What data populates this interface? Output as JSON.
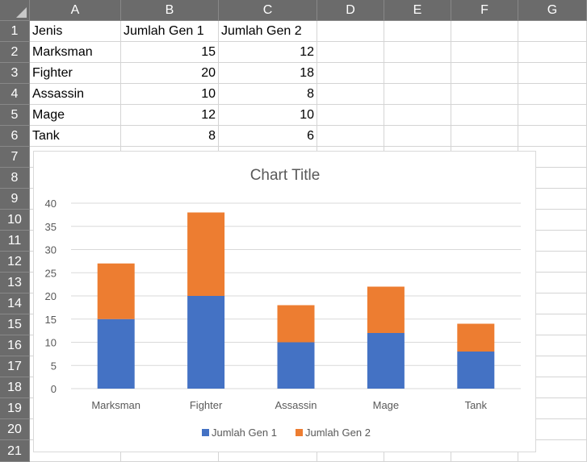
{
  "spreadsheet": {
    "columns": [
      "A",
      "B",
      "C",
      "D",
      "E",
      "F",
      "G"
    ],
    "rows": [
      "1",
      "2",
      "3",
      "4",
      "5",
      "6",
      "7",
      "8",
      "9",
      "10",
      "11",
      "12",
      "13",
      "14",
      "15",
      "16",
      "17",
      "18",
      "19",
      "20",
      "21"
    ],
    "cells": [
      [
        "Jenis",
        "Jumlah Gen 1",
        "Jumlah Gen 2"
      ],
      [
        "Marksman",
        "15",
        "12"
      ],
      [
        "Fighter",
        "20",
        "18"
      ],
      [
        "Assassin",
        "10",
        "8"
      ],
      [
        "Mage",
        "12",
        "10"
      ],
      [
        "Tank",
        "8",
        "6"
      ]
    ]
  },
  "chart_data": {
    "type": "bar",
    "stacked": true,
    "title": "Chart Title",
    "categories": [
      "Marksman",
      "Fighter",
      "Assassin",
      "Mage",
      "Tank"
    ],
    "series": [
      {
        "name": "Jumlah Gen 1",
        "values": [
          15,
          20,
          10,
          12,
          8
        ],
        "color": "#4472c4"
      },
      {
        "name": "Jumlah Gen 2",
        "values": [
          12,
          18,
          8,
          10,
          6
        ],
        "color": "#ed7d31"
      }
    ],
    "ylim": [
      0,
      40
    ],
    "yticks": [
      "0",
      "5",
      "10",
      "15",
      "20",
      "25",
      "30",
      "35",
      "40"
    ],
    "grid": true,
    "legend": "bottom",
    "gridline_color": "#d9d9d9",
    "text_color": "#595959"
  }
}
